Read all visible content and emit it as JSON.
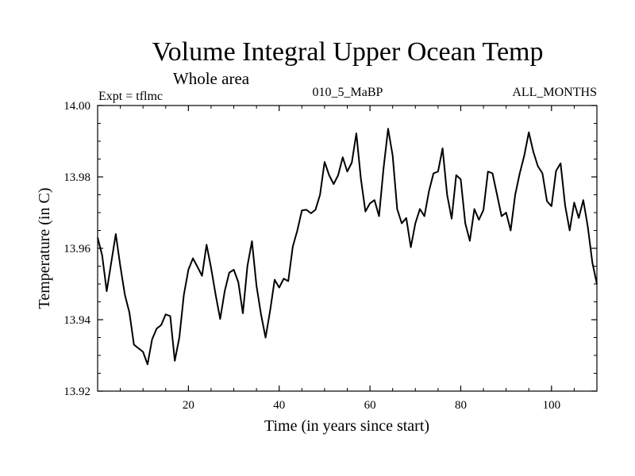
{
  "chart_data": {
    "type": "line",
    "title": "Volume Integral Upper Ocean Temp",
    "subtitle": "Whole area",
    "annotations": {
      "left": "Expt = tflmc",
      "center": "010_5_MaBP",
      "right": "ALL_MONTHS"
    },
    "xlabel": "Time (in years since start)",
    "ylabel": "Temperature (in C)",
    "xlim": [
      0,
      110
    ],
    "ylim": [
      13.92,
      14.0
    ],
    "xticks": [
      20,
      40,
      60,
      80,
      100
    ],
    "yticks": [
      13.92,
      13.94,
      13.96,
      13.98,
      14.0
    ],
    "ytick_labels": [
      "13.92",
      "13.94",
      "13.96",
      "13.98",
      "14.00"
    ],
    "grid": false,
    "series": [
      {
        "name": "Temperature",
        "color": "#000000",
        "x": [
          0,
          1,
          2,
          3,
          4,
          5,
          6,
          7,
          8,
          9,
          10,
          11,
          12,
          13,
          14,
          15,
          16,
          17,
          18,
          19,
          20,
          21,
          22,
          23,
          24,
          25,
          26,
          27,
          28,
          29,
          30,
          31,
          32,
          33,
          34,
          35,
          36,
          37,
          38,
          39,
          40,
          41,
          42,
          43,
          44,
          45,
          46,
          47,
          48,
          49,
          50,
          51,
          52,
          53,
          54,
          55,
          56,
          57,
          58,
          59,
          60,
          61,
          62,
          63,
          64,
          65,
          66,
          67,
          68,
          69,
          70,
          71,
          72,
          73,
          74,
          75,
          76,
          77,
          78,
          79,
          80,
          81,
          82,
          83,
          84,
          85,
          86,
          87,
          88,
          89,
          90,
          91,
          92,
          93,
          94,
          95,
          96,
          97,
          98,
          99,
          100,
          101,
          102,
          103,
          104,
          105,
          106,
          107,
          108,
          109,
          110
        ],
        "values": [
          13.963,
          13.958,
          13.948,
          13.956,
          13.964,
          13.955,
          13.947,
          13.942,
          13.933,
          13.932,
          13.931,
          13.9275,
          13.9345,
          13.9375,
          13.9385,
          13.9415,
          13.941,
          13.9285,
          13.935,
          13.947,
          13.954,
          13.9572,
          13.9548,
          13.9523,
          13.961,
          13.9545,
          13.947,
          13.9402,
          13.948,
          13.9532,
          13.954,
          13.9505,
          13.9418,
          13.955,
          13.962,
          13.9495,
          13.9415,
          13.935,
          13.9425,
          13.9512,
          13.949,
          13.9515,
          13.9508,
          13.9605,
          13.965,
          13.9706,
          13.9708,
          13.9698,
          13.9708,
          13.975,
          13.9842,
          13.9805,
          13.978,
          13.9805,
          13.9855,
          13.9815,
          13.984,
          13.9922,
          13.9795,
          13.9703,
          13.9726,
          13.9735,
          13.969,
          13.9825,
          13.9935,
          13.986,
          13.971,
          13.967,
          13.9685,
          13.9603,
          13.967,
          13.971,
          13.969,
          13.976,
          13.981,
          13.9815,
          13.988,
          13.975,
          13.9683,
          13.9805,
          13.9793,
          13.967,
          13.9621,
          13.971,
          13.968,
          13.9707,
          13.9815,
          13.981,
          13.975,
          13.969,
          13.97,
          13.965,
          13.975,
          13.981,
          13.986,
          13.9925,
          13.987,
          13.983,
          13.981,
          13.9732,
          13.9718,
          13.9817,
          13.9838,
          13.972,
          13.965,
          13.9728,
          13.9685,
          13.9735,
          13.966,
          13.956,
          13.95
        ]
      }
    ]
  }
}
